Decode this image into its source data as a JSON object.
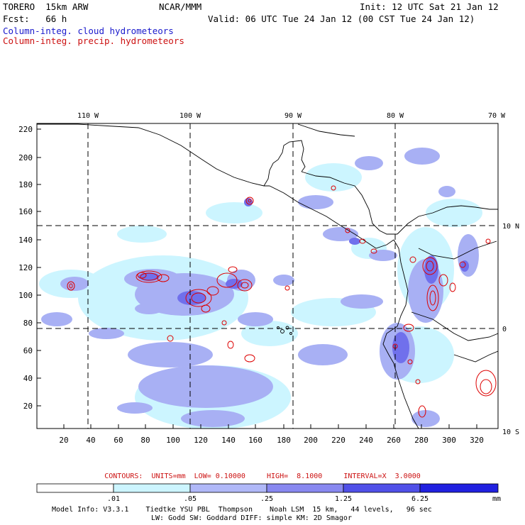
{
  "header": {
    "model_name": "TORERO  15km ARW",
    "center": "NCAR/MMM",
    "init": "Init: 12 UTC Sat 21 Jan 12",
    "fcst_label": "Fcst:   66 h",
    "valid": "Valid: 06 UTC Tue 24 Jan 12 (00 CST Tue 24 Jan 12)",
    "field_cloud": "Column-integ. cloud hydrometeors",
    "field_precip": "Column-integ. precip. hydrometeors"
  },
  "map": {
    "lon_labels": [
      "110 W",
      "100 W",
      "90 W",
      "80 W",
      "70 W"
    ],
    "lat_labels_right": [
      "10 N",
      "0",
      "10 S"
    ],
    "y_ticks": [
      "220",
      "200",
      "180",
      "160",
      "140",
      "120",
      "100",
      "80",
      "60",
      "40",
      "20"
    ],
    "x_ticks": [
      "20",
      "40",
      "60",
      "80",
      "100",
      "120",
      "140",
      "160",
      "180",
      "200",
      "220",
      "240",
      "260",
      "280",
      "300",
      "320"
    ]
  },
  "contours_text": "CONTOURS:  UNITS=mm  LOW= 0.10000     HIGH=  8.1000     INTERVAL=X  3.0000",
  "colorbar": {
    "ticks": [
      ".01",
      ".05",
      ".25",
      "1.25",
      "6.25"
    ],
    "unit": "mm",
    "colors": [
      "#ffffff",
      "#ccf5ff",
      "#b0b8f8",
      "#8888f0",
      "#5050e8",
      "#2020e0"
    ]
  },
  "footer": {
    "line1": "Model Info: V3.3.1    Tiedtke YSU PBL  Thompson    Noah LSM  15 km,   44 levels,   96 sec",
    "line2": "LW: Godd SW: Goddard DIFF: simple KM: 2D Smagor"
  },
  "colors": {
    "cloud_label": "#1a1acc",
    "precip_label": "#cc1111",
    "precip_contour": "#dd0000",
    "coast": "#000000"
  }
}
